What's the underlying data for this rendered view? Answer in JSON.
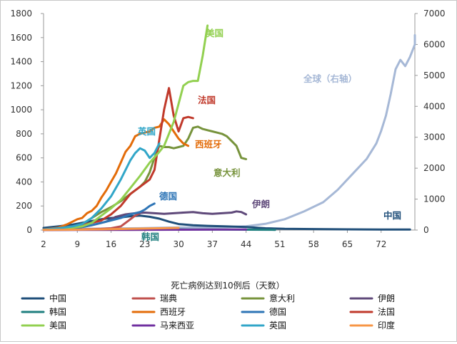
{
  "chart_data": {
    "type": "line",
    "title": "",
    "xlabel": "死亡病例达到10例后（天数）",
    "ylabel_left": "",
    "ylabel_right": "",
    "x_ticks": [
      2,
      9,
      16,
      23,
      30,
      37,
      44,
      51,
      58,
      65,
      72
    ],
    "xlim": [
      2,
      79
    ],
    "ylim_left": [
      0,
      1800
    ],
    "y_ticks_left": [
      0,
      200,
      400,
      600,
      800,
      1000,
      1200,
      1400,
      1600,
      1800
    ],
    "ylim_right": [
      0,
      7000
    ],
    "y_ticks_right": [
      0,
      1000,
      2000,
      3000,
      4000,
      5000,
      6000,
      7000
    ],
    "grid": false,
    "legend_position": "bottom",
    "series": [
      {
        "name": "中国",
        "label": "中国",
        "color": "#1f4e79",
        "axis": "left",
        "points": [
          [
            2,
            18
          ],
          [
            5,
            30
          ],
          [
            8,
            45
          ],
          [
            10,
            60
          ],
          [
            12,
            75
          ],
          [
            14,
            90
          ],
          [
            16,
            100
          ],
          [
            18,
            105
          ],
          [
            20,
            115
          ],
          [
            22,
            120
          ],
          [
            24,
            110
          ],
          [
            26,
            95
          ],
          [
            28,
            70
          ],
          [
            30,
            50
          ],
          [
            33,
            40
          ],
          [
            36,
            35
          ],
          [
            40,
            30
          ],
          [
            44,
            25
          ],
          [
            48,
            15
          ],
          [
            52,
            10
          ],
          [
            58,
            8
          ],
          [
            65,
            6
          ],
          [
            72,
            5
          ],
          [
            78,
            5
          ]
        ]
      },
      {
        "name": "瑞典",
        "label": "",
        "color": "#c0504d",
        "axis": "left",
        "points": [
          [
            2,
            2
          ],
          [
            6,
            4
          ],
          [
            10,
            6
          ],
          [
            14,
            10
          ],
          [
            16,
            15
          ],
          [
            18,
            30
          ],
          [
            19,
            60
          ],
          [
            20,
            90
          ],
          [
            21,
            120
          ],
          [
            22,
            140
          ]
        ]
      },
      {
        "name": "意大利",
        "label": "意大利",
        "color": "#77933c",
        "axis": "left",
        "points": [
          [
            2,
            3
          ],
          [
            5,
            10
          ],
          [
            8,
            30
          ],
          [
            10,
            50
          ],
          [
            12,
            100
          ],
          [
            14,
            150
          ],
          [
            16,
            190
          ],
          [
            18,
            240
          ],
          [
            20,
            300
          ],
          [
            21,
            330
          ],
          [
            22,
            360
          ],
          [
            23,
            400
          ],
          [
            24,
            480
          ],
          [
            25,
            600
          ],
          [
            26,
            700
          ],
          [
            27,
            690
          ],
          [
            28,
            690
          ],
          [
            29,
            680
          ],
          [
            30,
            690
          ],
          [
            31,
            700
          ],
          [
            32,
            760
          ],
          [
            33,
            850
          ],
          [
            34,
            860
          ],
          [
            35,
            840
          ],
          [
            36,
            830
          ],
          [
            37,
            820
          ],
          [
            38,
            810
          ],
          [
            39,
            800
          ],
          [
            40,
            780
          ],
          [
            41,
            740
          ],
          [
            42,
            700
          ],
          [
            43,
            600
          ],
          [
            44,
            590
          ]
        ]
      },
      {
        "name": "伊朗",
        "label": "伊朗",
        "color": "#5f497a",
        "axis": "left",
        "points": [
          [
            2,
            2
          ],
          [
            6,
            5
          ],
          [
            9,
            20
          ],
          [
            12,
            40
          ],
          [
            15,
            70
          ],
          [
            17,
            110
          ],
          [
            19,
            130
          ],
          [
            21,
            140
          ],
          [
            23,
            145
          ],
          [
            25,
            140
          ],
          [
            27,
            135
          ],
          [
            29,
            140
          ],
          [
            31,
            145
          ],
          [
            33,
            150
          ],
          [
            35,
            140
          ],
          [
            37,
            135
          ],
          [
            39,
            140
          ],
          [
            41,
            145
          ],
          [
            42,
            155
          ],
          [
            43,
            150
          ],
          [
            44,
            130
          ]
        ]
      },
      {
        "name": "韩国",
        "label": "韩国",
        "color": "#1f7f7f",
        "axis": "left",
        "points": [
          [
            2,
            1
          ],
          [
            8,
            3
          ],
          [
            14,
            4
          ],
          [
            20,
            5
          ],
          [
            26,
            6
          ],
          [
            32,
            5
          ],
          [
            38,
            4
          ],
          [
            44,
            3
          ],
          [
            50,
            2
          ]
        ]
      },
      {
        "name": "西班牙",
        "label": "西班牙",
        "color": "#e36c09",
        "axis": "left",
        "points": [
          [
            2,
            5
          ],
          [
            5,
            20
          ],
          [
            7,
            50
          ],
          [
            9,
            90
          ],
          [
            10,
            100
          ],
          [
            11,
            140
          ],
          [
            12,
            160
          ],
          [
            13,
            200
          ],
          [
            14,
            270
          ],
          [
            15,
            330
          ],
          [
            16,
            400
          ],
          [
            17,
            470
          ],
          [
            18,
            560
          ],
          [
            19,
            650
          ],
          [
            20,
            700
          ],
          [
            21,
            780
          ],
          [
            22,
            800
          ],
          [
            23,
            810
          ],
          [
            24,
            820
          ],
          [
            25,
            850
          ],
          [
            26,
            860
          ],
          [
            27,
            920
          ],
          [
            28,
            880
          ],
          [
            29,
            820
          ],
          [
            30,
            760
          ],
          [
            31,
            720
          ],
          [
            32,
            700
          ]
        ]
      },
      {
        "name": "德国",
        "label": "德国",
        "color": "#2e75b6",
        "axis": "left",
        "points": [
          [
            2,
            3
          ],
          [
            5,
            8
          ],
          [
            8,
            15
          ],
          [
            10,
            25
          ],
          [
            12,
            40
          ],
          [
            14,
            60
          ],
          [
            16,
            80
          ],
          [
            18,
            100
          ],
          [
            20,
            130
          ],
          [
            22,
            150
          ],
          [
            23,
            170
          ],
          [
            24,
            200
          ],
          [
            25,
            220
          ]
        ]
      },
      {
        "name": "法国",
        "label": "法国",
        "color": "#c0392b",
        "axis": "left",
        "points": [
          [
            2,
            5
          ],
          [
            6,
            20
          ],
          [
            10,
            40
          ],
          [
            14,
            80
          ],
          [
            16,
            130
          ],
          [
            18,
            200
          ],
          [
            20,
            300
          ],
          [
            22,
            360
          ],
          [
            24,
            420
          ],
          [
            25,
            500
          ],
          [
            26,
            750
          ],
          [
            27,
            1000
          ],
          [
            28,
            1180
          ],
          [
            29,
            950
          ],
          [
            30,
            820
          ],
          [
            31,
            930
          ],
          [
            32,
            940
          ],
          [
            33,
            930
          ]
        ]
      },
      {
        "name": "美国",
        "label": "美国",
        "color": "#92d050",
        "axis": "left",
        "points": [
          [
            2,
            3
          ],
          [
            6,
            10
          ],
          [
            10,
            30
          ],
          [
            12,
            60
          ],
          [
            14,
            120
          ],
          [
            16,
            180
          ],
          [
            18,
            250
          ],
          [
            20,
            350
          ],
          [
            22,
            450
          ],
          [
            24,
            560
          ],
          [
            26,
            650
          ],
          [
            27,
            700
          ],
          [
            28,
            800
          ],
          [
            29,
            900
          ],
          [
            30,
            1050
          ],
          [
            31,
            1200
          ],
          [
            32,
            1230
          ],
          [
            33,
            1240
          ],
          [
            34,
            1240
          ],
          [
            35,
            1450
          ],
          [
            36,
            1700
          ]
        ]
      },
      {
        "name": "马来西亚",
        "label": "",
        "color": "#7030a0",
        "axis": "left",
        "points": [
          [
            2,
            0
          ],
          [
            10,
            1
          ],
          [
            20,
            2
          ],
          [
            30,
            3
          ],
          [
            40,
            4
          ],
          [
            44,
            4
          ]
        ]
      },
      {
        "name": "英国",
        "label": "英国",
        "color": "#31a6c8",
        "axis": "left",
        "points": [
          [
            2,
            5
          ],
          [
            5,
            15
          ],
          [
            8,
            30
          ],
          [
            10,
            50
          ],
          [
            12,
            100
          ],
          [
            14,
            180
          ],
          [
            16,
            280
          ],
          [
            18,
            420
          ],
          [
            20,
            580
          ],
          [
            21,
            640
          ],
          [
            22,
            680
          ],
          [
            23,
            660
          ],
          [
            24,
            600
          ],
          [
            25,
            640
          ],
          [
            26,
            720
          ]
        ]
      },
      {
        "name": "印度",
        "label": "",
        "color": "#f79646",
        "axis": "left",
        "points": [
          [
            2,
            1
          ],
          [
            8,
            3
          ],
          [
            14,
            6
          ],
          [
            20,
            10
          ],
          [
            26,
            15
          ],
          [
            30,
            18
          ]
        ]
      },
      {
        "name": "全球（右轴）",
        "label": "全球（右轴）",
        "color": "#a6b8d6",
        "axis": "right",
        "points": [
          [
            2,
            30
          ],
          [
            10,
            40
          ],
          [
            16,
            50
          ],
          [
            22,
            60
          ],
          [
            28,
            80
          ],
          [
            34,
            90
          ],
          [
            40,
            100
          ],
          [
            44,
            120
          ],
          [
            48,
            200
          ],
          [
            52,
            350
          ],
          [
            56,
            600
          ],
          [
            60,
            900
          ],
          [
            63,
            1300
          ],
          [
            66,
            1800
          ],
          [
            69,
            2300
          ],
          [
            71,
            2800
          ],
          [
            72,
            3200
          ],
          [
            73,
            3700
          ],
          [
            74,
            4400
          ],
          [
            75,
            5200
          ],
          [
            76,
            5500
          ],
          [
            77,
            5300
          ],
          [
            78,
            5600
          ],
          [
            79,
            6000
          ],
          [
            80,
            6300
          ]
        ]
      }
    ],
    "legend": [
      "中国",
      "瑞典",
      "意大利",
      "伊朗",
      "韩国",
      "西班牙",
      "德国",
      "法国",
      "美国",
      "马来西亚",
      "英国",
      "印度"
    ]
  }
}
